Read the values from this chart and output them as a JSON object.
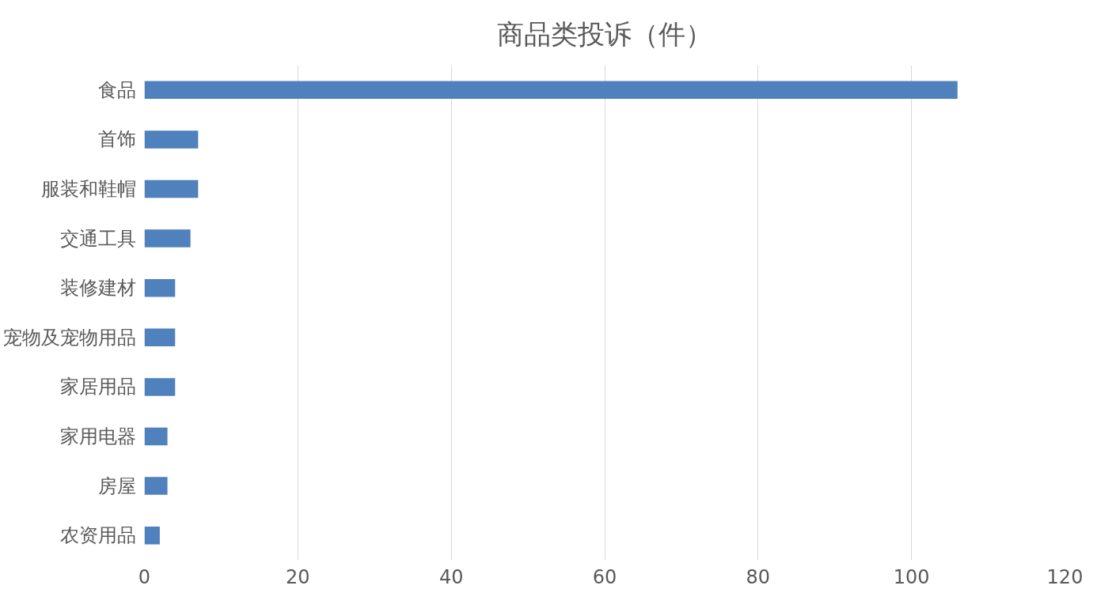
{
  "chart_data": {
    "type": "bar",
    "orientation": "horizontal",
    "title": "商品类投诉（件）",
    "categories": [
      "食品",
      "首饰",
      "服装和鞋帽",
      "交通工具",
      "装修建材",
      "宠物及宠物用品",
      "家居用品",
      "家用电器",
      "房屋",
      "农资用品"
    ],
    "values": [
      106,
      7,
      7,
      6,
      4,
      4,
      4,
      3,
      3,
      2
    ],
    "color": "#4f81bd",
    "xlim": [
      0,
      120
    ],
    "xticks": [
      0,
      20,
      40,
      60,
      80,
      100,
      120
    ],
    "grid": "x"
  }
}
